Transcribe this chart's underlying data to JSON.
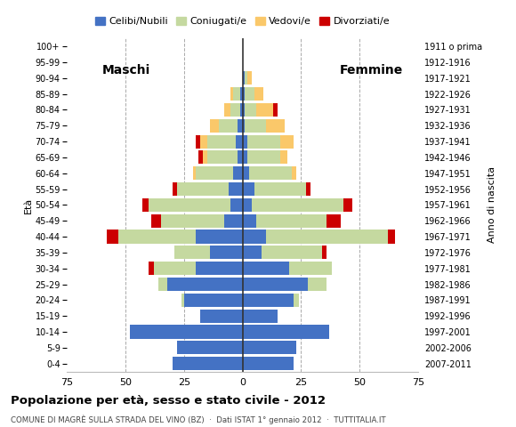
{
  "age_groups": [
    "0-4",
    "5-9",
    "10-14",
    "15-19",
    "20-24",
    "25-29",
    "30-34",
    "35-39",
    "40-44",
    "45-49",
    "50-54",
    "55-59",
    "60-64",
    "65-69",
    "70-74",
    "75-79",
    "80-84",
    "85-89",
    "90-94",
    "95-99",
    "100+"
  ],
  "birth_years": [
    "2007-2011",
    "2002-2006",
    "1997-2001",
    "1992-1996",
    "1987-1991",
    "1982-1986",
    "1977-1981",
    "1972-1976",
    "1967-1971",
    "1962-1966",
    "1957-1961",
    "1952-1956",
    "1947-1951",
    "1942-1946",
    "1937-1941",
    "1932-1936",
    "1927-1931",
    "1922-1926",
    "1917-1921",
    "1912-1916",
    "1911 o prima"
  ],
  "males": {
    "celibe": [
      30,
      28,
      48,
      18,
      25,
      32,
      20,
      14,
      20,
      8,
      5,
      6,
      4,
      2,
      3,
      2,
      1,
      1,
      0,
      0,
      0
    ],
    "coniugato": [
      0,
      0,
      0,
      0,
      1,
      4,
      18,
      15,
      33,
      27,
      35,
      22,
      16,
      13,
      12,
      8,
      4,
      3,
      0,
      0,
      0
    ],
    "vedovo": [
      0,
      0,
      0,
      0,
      0,
      0,
      0,
      0,
      0,
      0,
      0,
      0,
      1,
      2,
      3,
      4,
      3,
      1,
      0,
      0,
      0
    ],
    "divorziato": [
      0,
      0,
      0,
      0,
      0,
      0,
      2,
      0,
      5,
      4,
      3,
      2,
      0,
      2,
      2,
      0,
      0,
      0,
      0,
      0,
      0
    ]
  },
  "females": {
    "celibe": [
      22,
      23,
      37,
      15,
      22,
      28,
      20,
      8,
      10,
      6,
      4,
      5,
      3,
      2,
      2,
      1,
      1,
      1,
      1,
      0,
      0
    ],
    "coniugata": [
      0,
      0,
      0,
      0,
      2,
      8,
      18,
      26,
      52,
      30,
      39,
      22,
      18,
      14,
      14,
      9,
      5,
      4,
      1,
      0,
      0
    ],
    "vedova": [
      0,
      0,
      0,
      0,
      0,
      0,
      0,
      0,
      0,
      0,
      0,
      0,
      2,
      3,
      6,
      8,
      7,
      4,
      2,
      0,
      0
    ],
    "divorziata": [
      0,
      0,
      0,
      0,
      0,
      0,
      0,
      2,
      3,
      6,
      4,
      2,
      0,
      0,
      0,
      0,
      2,
      0,
      0,
      0,
      0
    ]
  },
  "colors": {
    "celibe": "#4472C4",
    "coniugato": "#C5D9A0",
    "vedovo": "#FAC86A",
    "divorziato": "#CC0000"
  },
  "xlim": 75,
  "title": "Popolazione per età, sesso e stato civile - 2012",
  "subtitle": "COMUNE DI MAGRÈ SULLA STRADA DEL VINO (BZ)  ·  Dati ISTAT 1° gennaio 2012  ·  TUTTITALIA.IT",
  "xlabel_left": "Maschi",
  "xlabel_right": "Femmine",
  "ylabel": "Età",
  "ylabel_right": "Anno di nascita",
  "legend_labels": [
    "Celibi/Nubili",
    "Coniugati/e",
    "Vedovi/e",
    "Divorziati/e"
  ],
  "background_color": "#ffffff",
  "bar_height": 0.85
}
